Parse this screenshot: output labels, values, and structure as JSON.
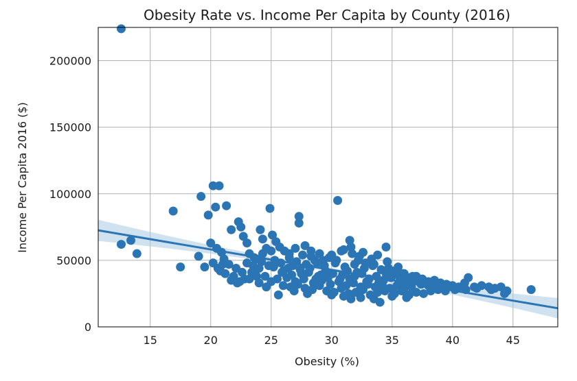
{
  "chart_data": {
    "type": "scatter",
    "title": "Obesity Rate vs. Income Per Capita by County (2016)",
    "xlabel": "Obesity (%)",
    "ylabel": "Income Per Capita 2016 ($)",
    "xlim": [
      10.7,
      48.7
    ],
    "ylim": [
      0,
      225000
    ],
    "x_ticks": [
      15,
      20,
      25,
      30,
      35,
      40,
      45
    ],
    "y_ticks": [
      0,
      50000,
      100000,
      150000,
      200000
    ],
    "grid": true,
    "colors": {
      "points": "#2b75b5",
      "line": "#2b75b5",
      "band": "#a9c8e3",
      "grid": "#b0b0b0",
      "frame": "#000000"
    },
    "regression": {
      "slope": -1540,
      "intercept": 89000,
      "ci_halfwidth_edge": 8000,
      "ci_halfwidth_center": 1500,
      "x_center": 30
    },
    "series": [
      {
        "points": [
          [
            12.6,
            224000
          ],
          [
            12.6,
            62000
          ],
          [
            13.4,
            65000
          ],
          [
            13.9,
            55000
          ],
          [
            16.9,
            87000
          ],
          [
            17.5,
            45000
          ],
          [
            19.0,
            53000
          ],
          [
            19.2,
            98000
          ],
          [
            19.5,
            45000
          ],
          [
            19.8,
            84000
          ],
          [
            20.0,
            63000
          ],
          [
            20.2,
            106000
          ],
          [
            20.4,
            90000
          ],
          [
            20.5,
            59000
          ],
          [
            20.7,
            106000
          ],
          [
            20.9,
            56000
          ],
          [
            21.1,
            51000
          ],
          [
            21.3,
            91000
          ],
          [
            21.5,
            47000
          ],
          [
            21.7,
            73000
          ],
          [
            22.3,
            79000
          ],
          [
            22.5,
            75000
          ],
          [
            22.7,
            68000
          ],
          [
            23.0,
            63000
          ],
          [
            23.2,
            55000
          ],
          [
            23.5,
            46000
          ],
          [
            23.8,
            51000
          ],
          [
            24.1,
            73000
          ],
          [
            24.3,
            66000
          ],
          [
            24.6,
            59000
          ],
          [
            24.9,
            89000
          ],
          [
            25.1,
            69000
          ],
          [
            25.4,
            64000
          ],
          [
            25.6,
            24000
          ],
          [
            26.1,
            57000
          ],
          [
            26.5,
            52000
          ],
          [
            27.0,
            59000
          ],
          [
            27.3,
            83000
          ],
          [
            27.3,
            78000
          ],
          [
            27.8,
            61000
          ],
          [
            28.3,
            53000
          ],
          [
            28.8,
            48000
          ],
          [
            29.3,
            50000
          ],
          [
            30.0,
            54000
          ],
          [
            30.5,
            95000
          ],
          [
            31.0,
            58000
          ],
          [
            31.5,
            65000
          ],
          [
            31.6,
            21000
          ],
          [
            32.2,
            50000
          ],
          [
            32.8,
            48000
          ],
          [
            33.5,
            47000
          ],
          [
            34.0,
            18500
          ],
          [
            34.5,
            60000
          ],
          [
            35.0,
            42000
          ],
          [
            35.5,
            45000
          ],
          [
            36.0,
            40000
          ],
          [
            36.5,
            37000
          ],
          [
            37.0,
            38000
          ],
          [
            37.5,
            36000
          ],
          [
            38.0,
            34000
          ],
          [
            38.5,
            35000
          ],
          [
            39.0,
            33000
          ],
          [
            39.5,
            32000
          ],
          [
            40.0,
            31000
          ],
          [
            40.5,
            30000
          ],
          [
            41.0,
            33000
          ],
          [
            41.3,
            37000
          ],
          [
            41.8,
            30000
          ],
          [
            42.4,
            31000
          ],
          [
            43.0,
            30000
          ],
          [
            43.5,
            29000
          ],
          [
            44.0,
            30000
          ],
          [
            44.5,
            27000
          ],
          [
            46.5,
            28000
          ],
          [
            20.2,
            48000
          ],
          [
            20.8,
            42000
          ],
          [
            21.2,
            40000
          ],
          [
            21.7,
            35000
          ],
          [
            22.2,
            33000
          ],
          [
            22.8,
            36000
          ],
          [
            23.4,
            41000
          ],
          [
            24.0,
            44000
          ],
          [
            24.5,
            38000
          ],
          [
            25.0,
            34000
          ],
          [
            25.5,
            36000
          ],
          [
            26.0,
            31000
          ],
          [
            26.6,
            30000
          ],
          [
            27.2,
            32000
          ],
          [
            27.8,
            29000
          ],
          [
            28.4,
            28000
          ],
          [
            29.0,
            31000
          ],
          [
            29.6,
            27000
          ],
          [
            30.2,
            26000
          ],
          [
            30.8,
            29000
          ],
          [
            31.4,
            25000
          ],
          [
            32.0,
            26000
          ],
          [
            32.6,
            28000
          ],
          [
            33.2,
            24000
          ],
          [
            33.8,
            26000
          ],
          [
            34.4,
            27000
          ],
          [
            35.2,
            25000
          ],
          [
            35.8,
            27000
          ],
          [
            36.4,
            24000
          ],
          [
            37.0,
            26000
          ],
          [
            37.6,
            25000
          ],
          [
            38.2,
            27000
          ],
          [
            38.8,
            28000
          ],
          [
            39.4,
            27000
          ],
          [
            40.2,
            28000
          ],
          [
            26.0,
            42000
          ],
          [
            26.8,
            46000
          ],
          [
            27.5,
            40000
          ],
          [
            28.2,
            44000
          ],
          [
            28.9,
            38000
          ],
          [
            29.5,
            42000
          ],
          [
            30.1,
            40000
          ],
          [
            30.7,
            36000
          ],
          [
            31.3,
            42000
          ],
          [
            31.9,
            38000
          ],
          [
            32.5,
            40000
          ],
          [
            33.1,
            36000
          ],
          [
            33.7,
            38000
          ],
          [
            34.3,
            35000
          ],
          [
            34.9,
            37000
          ],
          [
            35.6,
            34000
          ],
          [
            36.2,
            33000
          ],
          [
            36.8,
            35000
          ],
          [
            37.4,
            32000
          ],
          [
            38.0,
            31000
          ],
          [
            38.6,
            32000
          ],
          [
            39.2,
            30000
          ],
          [
            26.3,
            37000
          ],
          [
            27.0,
            34000
          ],
          [
            27.7,
            36000
          ],
          [
            28.5,
            33000
          ],
          [
            29.2,
            35000
          ],
          [
            29.9,
            32000
          ],
          [
            30.6,
            34000
          ],
          [
            31.2,
            31000
          ],
          [
            31.8,
            33000
          ],
          [
            32.4,
            30000
          ],
          [
            33.0,
            32000
          ],
          [
            33.6,
            30000
          ],
          [
            34.2,
            31000
          ],
          [
            34.8,
            29000
          ],
          [
            35.4,
            31000
          ],
          [
            36.0,
            29000
          ],
          [
            36.6,
            30000
          ],
          [
            25.2,
            45000
          ],
          [
            25.8,
            48000
          ],
          [
            26.4,
            44000
          ],
          [
            27.1,
            49000
          ],
          [
            27.9,
            47000
          ],
          [
            28.6,
            50000
          ],
          [
            29.4,
            46000
          ],
          [
            30.3,
            48000
          ],
          [
            31.1,
            45000
          ],
          [
            31.9,
            47000
          ],
          [
            32.7,
            44000
          ],
          [
            33.4,
            46000
          ],
          [
            34.1,
            43000
          ],
          [
            34.7,
            44000
          ],
          [
            35.3,
            41000
          ],
          [
            35.9,
            40000
          ],
          [
            36.7,
            38000
          ],
          [
            29.8,
            52000
          ],
          [
            30.4,
            50000
          ],
          [
            31.7,
            55000
          ],
          [
            32.3,
            53000
          ],
          [
            33.3,
            51000
          ],
          [
            34.6,
            49000
          ],
          [
            23.0,
            48000
          ],
          [
            23.6,
            52000
          ],
          [
            24.2,
            49000
          ],
          [
            24.8,
            46000
          ],
          [
            25.3,
            50000
          ],
          [
            25.9,
            41000
          ],
          [
            26.7,
            39000
          ],
          [
            27.4,
            43000
          ],
          [
            28.1,
            41000
          ],
          [
            28.7,
            36000
          ],
          [
            29.1,
            39000
          ],
          [
            29.7,
            37000
          ],
          [
            30.9,
            39000
          ],
          [
            31.5,
            36000
          ],
          [
            32.1,
            41000
          ],
          [
            32.9,
            34000
          ],
          [
            33.9,
            33000
          ],
          [
            34.5,
            40000
          ],
          [
            35.1,
            39000
          ],
          [
            35.7,
            36000
          ],
          [
            36.3,
            35000
          ],
          [
            37.2,
            34000
          ],
          [
            37.8,
            33000
          ],
          [
            38.4,
            30000
          ],
          [
            39.0,
            29000
          ],
          [
            39.7,
            31000
          ],
          [
            40.4,
            29000
          ],
          [
            41.1,
            28000
          ],
          [
            42.0,
            29000
          ],
          [
            43.2,
            28000
          ],
          [
            44.3,
            25000
          ],
          [
            22.1,
            44000
          ],
          [
            22.6,
            41000
          ],
          [
            24.6,
            30000
          ],
          [
            26.9,
            27000
          ],
          [
            28.0,
            25000
          ],
          [
            30.0,
            24000
          ],
          [
            31.0,
            23000
          ],
          [
            32.4,
            22000
          ],
          [
            33.5,
            21000
          ],
          [
            35.0,
            23000
          ],
          [
            36.2,
            22000
          ],
          [
            28.3,
            57000
          ],
          [
            29.0,
            55000
          ],
          [
            30.8,
            57000
          ],
          [
            31.6,
            60000
          ],
          [
            32.6,
            56000
          ],
          [
            33.8,
            54000
          ],
          [
            24.3,
            55000
          ],
          [
            25.0,
            57000
          ],
          [
            25.7,
            60000
          ],
          [
            26.5,
            55000
          ],
          [
            27.6,
            54000
          ],
          [
            23.8,
            38000
          ],
          [
            21.9,
            38000
          ],
          [
            22.4,
            34000
          ],
          [
            23.2,
            36000
          ],
          [
            24.0,
            33000
          ],
          [
            20.6,
            44000
          ],
          [
            21.0,
            47000
          ]
        ]
      }
    ]
  }
}
